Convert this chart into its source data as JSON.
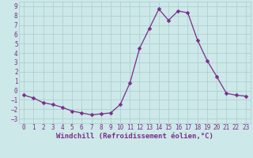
{
  "x": [
    0,
    1,
    2,
    3,
    4,
    5,
    6,
    7,
    8,
    9,
    10,
    11,
    12,
    13,
    14,
    15,
    16,
    17,
    18,
    19,
    20,
    21,
    22,
    23
  ],
  "y": [
    -0.5,
    -0.8,
    -1.3,
    -1.5,
    -1.8,
    -2.2,
    -2.4,
    -2.6,
    -2.5,
    -2.4,
    -1.5,
    0.8,
    4.5,
    6.6,
    8.7,
    7.5,
    8.5,
    8.3,
    5.4,
    3.2,
    1.5,
    -0.3,
    -0.5,
    -0.6
  ],
  "line_color": "#7b2d8b",
  "marker": "D",
  "marker_size": 2.5,
  "bg_color": "#cce8e8",
  "grid_color": "#aacccc",
  "xlabel": "Windchill (Refroidissement éolien,°C)",
  "xlim": [
    -0.5,
    23.5
  ],
  "ylim": [
    -3.5,
    9.5
  ],
  "yticks": [
    -3,
    -2,
    -1,
    0,
    1,
    2,
    3,
    4,
    5,
    6,
    7,
    8,
    9
  ],
  "xticks": [
    0,
    1,
    2,
    3,
    4,
    5,
    6,
    7,
    8,
    9,
    10,
    11,
    12,
    13,
    14,
    15,
    16,
    17,
    18,
    19,
    20,
    21,
    22,
    23
  ],
  "label_color": "#7b2d8b",
  "tick_fontsize": 5.5,
  "xlabel_fontsize": 6.5
}
